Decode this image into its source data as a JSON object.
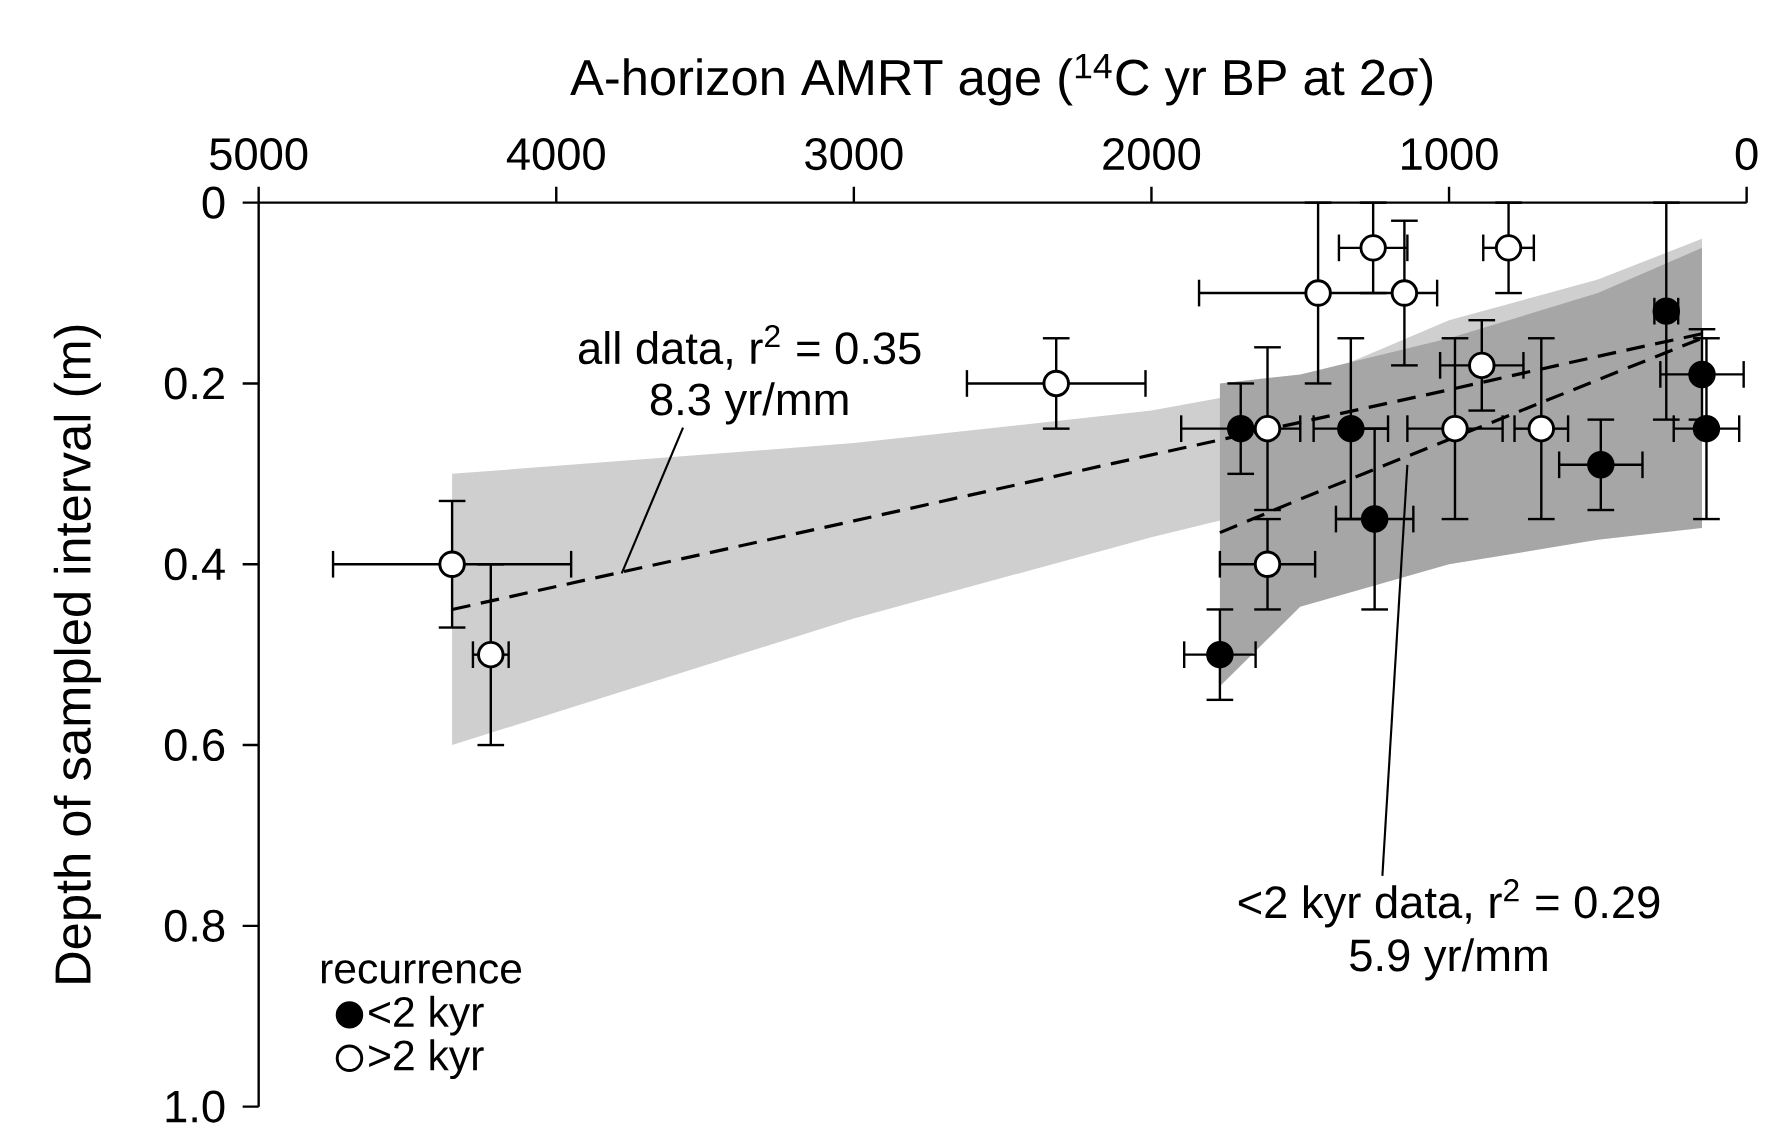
{
  "chart_data": {
    "type": "scatter",
    "xlabel": "A-horizon AMRT age ($^{14}$C yr BP at 2σ)",
    "ylabel": "Depth of sampled interval (m)",
    "legend_title": "recurrence",
    "xlim": [
      5000,
      0
    ],
    "ylim": [
      1.0,
      0
    ],
    "xticks": [
      5000,
      4000,
      3000,
      2000,
      1000,
      0
    ],
    "yticks": [
      0,
      0.2,
      0.4,
      0.6,
      0.8,
      {
        "value": 1.0,
        "label": "1.0"
      }
    ],
    "legend": "bottom left",
    "series": [
      {
        "type": "line",
        "color": "#000000",
        "line_style": "dashed",
        "x": [
          4350,
          3000,
          2000,
          1500,
          1000,
          500,
          150
        ],
        "values": [
          0.45,
          0.352,
          0.279,
          0.243,
          0.207,
          0.17,
          0.145
        ],
        "lower": [
          0.3,
          0.266,
          0.23,
          0.2,
          0.13,
          0.085,
          0.04
        ],
        "upper": [
          0.6,
          0.46,
          0.37,
          0.33,
          0.28,
          0.255,
          0.25
        ]
      },
      {
        "type": "line",
        "color": "#000000",
        "line_style": "dashed",
        "x": [
          1770,
          1500,
          1000,
          500,
          150
        ],
        "values": [
          0.365,
          0.328,
          0.262,
          0.196,
          0.15
        ],
        "lower": [
          0.2,
          0.19,
          0.15,
          0.1,
          0.05
        ],
        "upper": [
          0.535,
          0.447,
          0.4,
          0.373,
          0.36
        ]
      },
      {
        "name": "<2 kyr",
        "marker": "circle",
        "color": "#000000",
        "x": [
          1700,
          1330,
          1250,
          1770,
          270,
          490,
          150,
          135
        ],
        "values": [
          0.25,
          0.25,
          0.35,
          0.5,
          0.12,
          0.29,
          0.19,
          0.25
        ],
        "xerrors": [
          200,
          125,
          130,
          120,
          40,
          140,
          140,
          110
        ],
        "errors": [
          0.05,
          0.1,
          0.1,
          0.05,
          0.12,
          0.05,
          0.05,
          0.1
        ]
      },
      {
        "name": ">2 kyr",
        "marker": "circle",
        "color": "#ffffff",
        "x": [
          4350,
          4220,
          2320,
          1440,
          1255,
          1150,
          800,
          890,
          1610,
          980,
          690,
          1610
        ],
        "values": [
          0.4,
          0.5,
          0.2,
          0.1,
          0.05,
          0.1,
          0.05,
          0.18,
          0.25,
          0.25,
          0.25,
          0.4
        ],
        "xerrors": [
          400,
          60,
          300,
          400,
          115,
          null,
          85,
          140,
          null,
          160,
          90,
          160
        ],
        "errors": [
          0.07,
          0.1,
          0.05,
          0.1,
          0.05,
          0.08,
          0.05,
          0.05,
          0.09,
          0.1,
          0.1,
          0.05
        ]
      }
    ],
    "annotations": [
      "all data, r$^{2}$ = 0.35",
      {
        "text": "8.3 yr/mm",
        "x": 3780,
        "y": 0.41
      },
      {
        "text": "<2 kyr data, r$^{2}$ = 0.29",
        "x": 1140,
        "y": 0.29
      },
      "5.9 yr/mm"
    ]
  }
}
